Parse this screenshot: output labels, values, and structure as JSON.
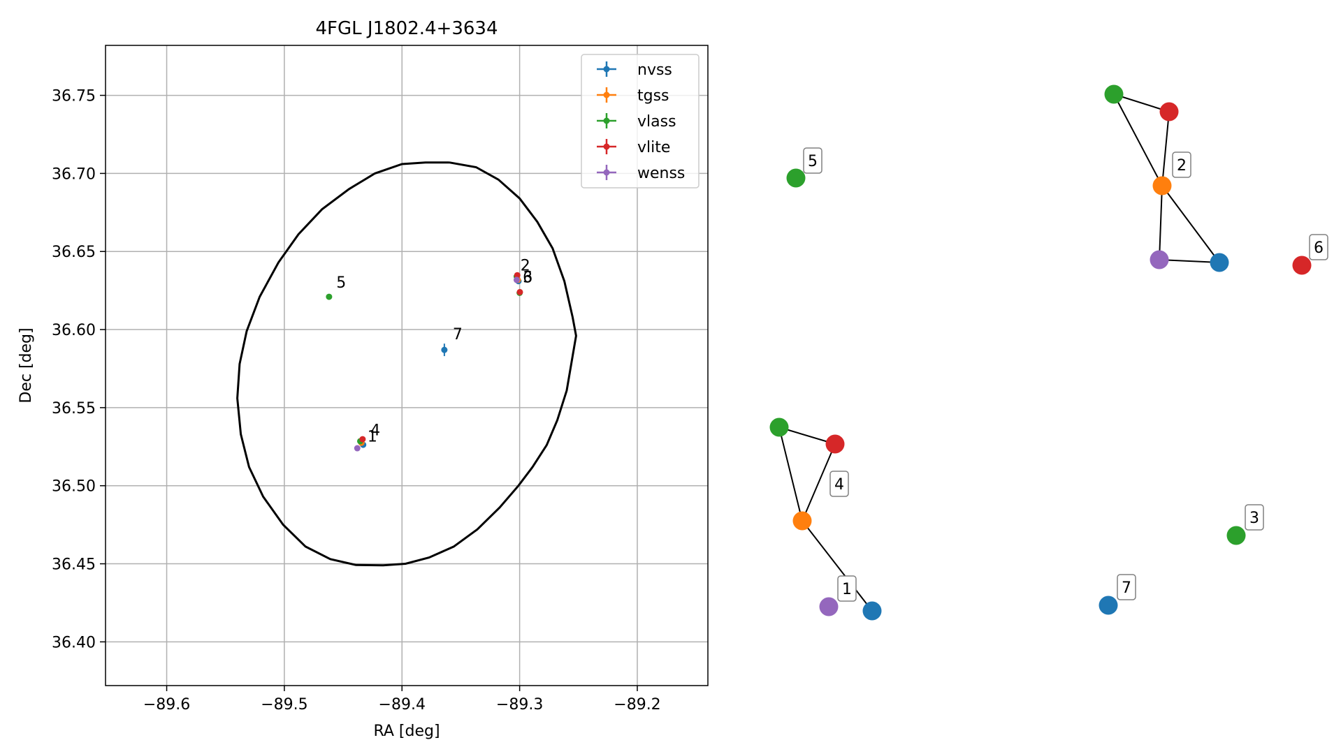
{
  "chart_data": [
    {
      "type": "scatter",
      "title": "4FGL J1802.4+3634",
      "xlabel": "RA [deg]",
      "ylabel": "Dec [deg]",
      "xlim": [
        -89.652,
        -89.14
      ],
      "ylim": [
        36.372,
        36.782
      ],
      "xticks": [
        -89.6,
        -89.5,
        -89.4,
        -89.3,
        -89.2
      ],
      "xtick_labels": [
        "−89.6",
        "−89.5",
        "−89.4",
        "−89.3",
        "−89.2"
      ],
      "yticks": [
        36.4,
        36.45,
        36.5,
        36.55,
        36.6,
        36.65,
        36.7,
        36.75
      ],
      "ytick_labels": [
        "36.40",
        "36.45",
        "36.50",
        "36.55",
        "36.60",
        "36.65",
        "36.70",
        "36.75"
      ],
      "grid": true,
      "legend_position": "top-right",
      "series": [
        {
          "name": "nvss",
          "color": "#1f77b4",
          "points": [
            {
              "x": -89.433,
              "y": 36.5262,
              "xerr": 0.0015,
              "yerr": 0.0015
            },
            {
              "x": -89.301,
              "y": 36.631,
              "xerr": 0.0015,
              "yerr": 0.0015
            },
            {
              "x": -89.364,
              "y": 36.587,
              "xerr": 0.0025,
              "yerr": 0.004
            }
          ]
        },
        {
          "name": "tgss",
          "color": "#ff7f0e",
          "points": [
            {
              "x": -89.4345,
              "y": 36.5275,
              "xerr": 0.001,
              "yerr": 0.001
            },
            {
              "x": -89.3015,
              "y": 36.6318,
              "xerr": 0.001,
              "yerr": 0.001
            }
          ]
        },
        {
          "name": "vlass",
          "color": "#2ca02c",
          "points": [
            {
              "x": -89.4355,
              "y": 36.5285,
              "xerr": 0,
              "yerr": 0
            },
            {
              "x": -89.3025,
              "y": 36.634,
              "xerr": 0,
              "yerr": 0
            },
            {
              "x": -89.3,
              "y": 36.6235,
              "xerr": 0,
              "yerr": 0
            },
            {
              "x": -89.462,
              "y": 36.621,
              "xerr": 0,
              "yerr": 0
            }
          ]
        },
        {
          "name": "vlite",
          "color": "#d62728",
          "points": [
            {
              "x": -89.4335,
              "y": 36.5298,
              "xerr": 0.0008,
              "yerr": 0.0008
            },
            {
              "x": -89.302,
              "y": 36.6348,
              "xerr": 0.0008,
              "yerr": 0.0008
            },
            {
              "x": -89.2998,
              "y": 36.624,
              "xerr": 0.0008,
              "yerr": 0.0008
            }
          ]
        },
        {
          "name": "wenss",
          "color": "#9467bd",
          "points": [
            {
              "x": -89.438,
              "y": 36.524,
              "xerr": 0.001,
              "yerr": 0.001
            },
            {
              "x": -89.3025,
              "y": 36.6318,
              "xerr": 0.001,
              "yerr": 0.001
            }
          ]
        }
      ],
      "annotations": [
        {
          "text": "1",
          "x": -89.4335,
          "y": 36.5265
        },
        {
          "text": "2",
          "x": -89.3035,
          "y": 36.636
        },
        {
          "text": "3",
          "x": -89.3015,
          "y": 36.6285
        },
        {
          "text": "4",
          "x": -89.431,
          "y": 36.5305
        },
        {
          "text": "5",
          "x": -89.46,
          "y": 36.625
        },
        {
          "text": "6",
          "x": -89.3015,
          "y": 36.6285
        },
        {
          "text": "7",
          "x": -89.361,
          "y": 36.592
        }
      ],
      "ellipse": {
        "color": "#000000",
        "points": [
          [
            -89.3598,
            36.707
          ],
          [
            -89.337,
            36.704
          ],
          [
            -89.318,
            36.696
          ],
          [
            -89.3,
            36.684
          ],
          [
            -89.285,
            36.669
          ],
          [
            -89.272,
            36.652
          ],
          [
            -89.262,
            36.631
          ],
          [
            -89.255,
            36.608
          ],
          [
            -89.252,
            36.596
          ],
          [
            -89.255,
            36.583
          ],
          [
            -89.26,
            36.561
          ],
          [
            -89.268,
            36.542
          ],
          [
            -89.277,
            36.526
          ],
          [
            -89.289,
            36.512
          ],
          [
            -89.301,
            36.5
          ],
          [
            -89.317,
            36.486
          ],
          [
            -89.336,
            36.472
          ],
          [
            -89.356,
            36.461
          ],
          [
            -89.377,
            36.454
          ],
          [
            -89.397,
            36.45
          ],
          [
            -89.416,
            36.449
          ],
          [
            -89.439,
            36.4492
          ],
          [
            -89.461,
            36.453
          ],
          [
            -89.482,
            36.461
          ],
          [
            -89.501,
            36.475
          ],
          [
            -89.518,
            36.493
          ],
          [
            -89.53,
            36.512
          ],
          [
            -89.537,
            36.533
          ],
          [
            -89.54,
            36.556
          ],
          [
            -89.538,
            36.578
          ],
          [
            -89.532,
            36.599
          ],
          [
            -89.521,
            36.621
          ],
          [
            -89.505,
            36.643
          ],
          [
            -89.488,
            36.661
          ],
          [
            -89.468,
            36.677
          ],
          [
            -89.445,
            36.69
          ],
          [
            -89.423,
            36.7
          ],
          [
            -89.4,
            36.706
          ],
          [
            -89.38,
            36.707
          ],
          [
            -89.3598,
            36.707
          ]
        ]
      }
    },
    {
      "type": "network",
      "nodes": [
        {
          "id": "5",
          "series": "vlass",
          "color": "#2ca02c",
          "label": "5"
        },
        {
          "id": "2a",
          "series": "vlass",
          "color": "#2ca02c",
          "label": ""
        },
        {
          "id": "2b",
          "series": "vlite",
          "color": "#d62728",
          "label": ""
        },
        {
          "id": "2c",
          "series": "tgss",
          "color": "#ff7f0e",
          "label": "2"
        },
        {
          "id": "2d",
          "series": "wenss",
          "color": "#9467bd",
          "label": ""
        },
        {
          "id": "2e",
          "series": "nvss",
          "color": "#1f77b4",
          "label": ""
        },
        {
          "id": "6",
          "series": "vlite",
          "color": "#d62728",
          "label": "6"
        },
        {
          "id": "4a",
          "series": "vlass",
          "color": "#2ca02c",
          "label": ""
        },
        {
          "id": "4b",
          "series": "vlite",
          "color": "#d62728",
          "label": ""
        },
        {
          "id": "4c",
          "series": "tgss",
          "color": "#ff7f0e",
          "label": "4"
        },
        {
          "id": "1",
          "series": "wenss",
          "color": "#9467bd",
          "label": "1"
        },
        {
          "id": "1b",
          "series": "nvss",
          "color": "#1f77b4",
          "label": ""
        },
        {
          "id": "3",
          "series": "vlass",
          "color": "#2ca02c",
          "label": "3"
        },
        {
          "id": "7",
          "series": "nvss",
          "color": "#1f77b4",
          "label": "7"
        }
      ],
      "edges": [
        [
          "2a",
          "2b"
        ],
        [
          "2a",
          "2c"
        ],
        [
          "2b",
          "2c"
        ],
        [
          "2c",
          "2d"
        ],
        [
          "2c",
          "2e"
        ],
        [
          "2d",
          "2e"
        ],
        [
          "4a",
          "4b"
        ],
        [
          "4a",
          "4c"
        ],
        [
          "4b",
          "4c"
        ],
        [
          "4c",
          "1b"
        ]
      ]
    }
  ]
}
